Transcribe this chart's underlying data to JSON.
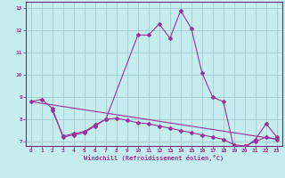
{
  "xlabel": "Windchill (Refroidissement éolien,°C)",
  "xlim": [
    -0.5,
    23.5
  ],
  "ylim": [
    6.8,
    13.3
  ],
  "yticks": [
    7,
    8,
    9,
    10,
    11,
    12,
    13
  ],
  "xticks": [
    0,
    1,
    2,
    3,
    4,
    5,
    6,
    7,
    8,
    9,
    10,
    11,
    12,
    13,
    14,
    15,
    16,
    17,
    18,
    19,
    20,
    21,
    22,
    23
  ],
  "background_color": "#c5ecee",
  "grid_color": "#a0cdd0",
  "line_color": "#993399",
  "spine_color": "#7a2a7a",
  "curve1_x": [
    0,
    1,
    2,
    3,
    4,
    5,
    6,
    7,
    10,
    11,
    12,
    13,
    14,
    15,
    16,
    17,
    18,
    19,
    20,
    21,
    22,
    23
  ],
  "curve1_y": [
    8.8,
    8.9,
    8.5,
    7.2,
    7.3,
    7.4,
    7.7,
    8.0,
    11.8,
    11.8,
    12.3,
    11.65,
    12.9,
    12.1,
    10.1,
    9.0,
    8.8,
    6.7,
    6.7,
    7.1,
    7.8,
    7.2
  ],
  "curve2_x": [
    0,
    23
  ],
  "curve2_y": [
    8.8,
    7.1
  ],
  "curve3_x": [
    2,
    3,
    4,
    5,
    6,
    7,
    8,
    9,
    10,
    11,
    12,
    13,
    14,
    15,
    16,
    17,
    18,
    19,
    20,
    21,
    22,
    23
  ],
  "curve3_y": [
    8.4,
    7.25,
    7.35,
    7.45,
    7.75,
    8.0,
    8.05,
    7.95,
    7.85,
    7.8,
    7.7,
    7.6,
    7.5,
    7.4,
    7.3,
    7.2,
    7.1,
    6.85,
    6.8,
    7.0,
    7.2,
    7.1
  ]
}
